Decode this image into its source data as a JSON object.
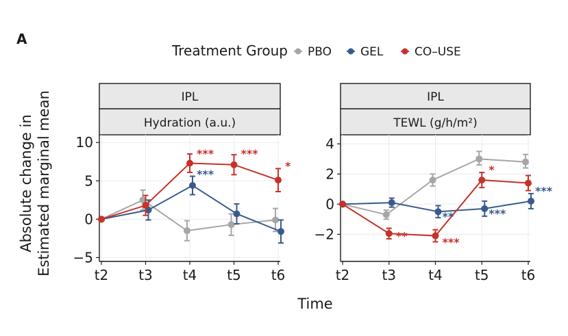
{
  "panel_letter": "A",
  "legend": {
    "title": "Treatment Group",
    "entries": [
      {
        "name": "PBO",
        "color": "#a6a6a6"
      },
      {
        "name": "GEL",
        "color": "#3b5a8c"
      },
      {
        "name": "CO–USE",
        "color": "#c8302a"
      }
    ]
  },
  "xlabel": "Time",
  "ylabel_lines": [
    "Absolute change in",
    "Estimated marginal mean"
  ],
  "chart_data": [
    {
      "type": "line",
      "strip_top": "IPL",
      "strip_bottom": "Hydration (a.u.)",
      "categories": [
        "t2",
        "t3",
        "t4",
        "t5",
        "t6"
      ],
      "ylim": [
        -5.5,
        11
      ],
      "yticks": [
        -5,
        0,
        5,
        10
      ],
      "ytick_labels": [
        "−5",
        "0",
        "5",
        "10"
      ],
      "series": [
        {
          "name": "PBO",
          "color": "#a6a6a6",
          "values": [
            0,
            2.5,
            -1.5,
            -0.7,
            -0.1
          ],
          "lower": [
            0,
            1.2,
            -2.8,
            -2.1,
            -1.6
          ],
          "upper": [
            0,
            3.8,
            -0.2,
            0.7,
            1.4
          ]
        },
        {
          "name": "GEL",
          "color": "#3b5a8c",
          "values": [
            0,
            1.2,
            4.4,
            0.7,
            -1.6
          ],
          "lower": [
            0,
            -0.1,
            3.2,
            -0.6,
            -3.1
          ],
          "upper": [
            0,
            2.5,
            5.6,
            2.0,
            -0.1
          ]
        },
        {
          "name": "CO–USE",
          "color": "#c8302a",
          "values": [
            0,
            1.8,
            7.3,
            7.1,
            5.1
          ],
          "lower": [
            0,
            0.5,
            6.1,
            5.8,
            3.6
          ],
          "upper": [
            0,
            3.1,
            8.5,
            8.4,
            6.6
          ]
        }
      ],
      "annotations": [
        {
          "text": "***",
          "series": "CO–USE",
          "category": "t4",
          "y": 8.6
        },
        {
          "text": "***",
          "series": "CO–USE",
          "category": "t5",
          "y": 8.6
        },
        {
          "text": "*",
          "series": "CO–USE",
          "category": "t6",
          "y": 7.0
        },
        {
          "text": "***",
          "series": "GEL",
          "category": "t4",
          "y": 5.9
        }
      ]
    },
    {
      "type": "line",
      "strip_top": "IPL",
      "strip_bottom": "TEWL (g/h/m²)",
      "categories": [
        "t2",
        "t3",
        "t4",
        "t5",
        "t6"
      ],
      "ylim": [
        -3.8,
        4.6
      ],
      "yticks": [
        -2,
        0,
        2,
        4
      ],
      "ytick_labels": [
        "−2",
        "0",
        "2",
        "4"
      ],
      "series": [
        {
          "name": "PBO",
          "color": "#a6a6a6",
          "values": [
            0,
            -0.7,
            1.6,
            3.0,
            2.8
          ],
          "lower": [
            0,
            -1.0,
            1.2,
            2.6,
            2.4
          ],
          "upper": [
            0,
            -0.4,
            2.0,
            3.5,
            3.3
          ]
        },
        {
          "name": "GEL",
          "color": "#3b5a8c",
          "values": [
            0,
            0.1,
            -0.5,
            -0.3,
            0.2
          ],
          "lower": [
            0,
            -0.2,
            -0.9,
            -0.8,
            -0.3
          ],
          "upper": [
            0,
            0.4,
            -0.1,
            0.2,
            0.7
          ]
        },
        {
          "name": "CO–USE",
          "color": "#c8302a",
          "values": [
            0,
            -1.95,
            -2.1,
            1.6,
            1.4
          ],
          "lower": [
            0,
            -2.3,
            -2.5,
            1.1,
            0.9
          ],
          "upper": [
            0,
            -1.6,
            -1.7,
            2.1,
            1.9
          ]
        }
      ],
      "annotations": [
        {
          "text": "**",
          "series": "CO–USE",
          "category": "t3",
          "y": -2.1
        },
        {
          "text": "***",
          "series": "CO–USE",
          "category": "t4",
          "y": -2.5
        },
        {
          "text": "*",
          "series": "CO–USE",
          "category": "t5",
          "y": 2.3
        },
        {
          "text": "**",
          "series": "GEL",
          "category": "t4",
          "y": -0.8
        },
        {
          "text": "***",
          "series": "GEL",
          "category": "t5",
          "y": -0.6
        },
        {
          "text": "***",
          "series": "GEL",
          "category": "t6",
          "y": 0.9
        }
      ]
    }
  ]
}
